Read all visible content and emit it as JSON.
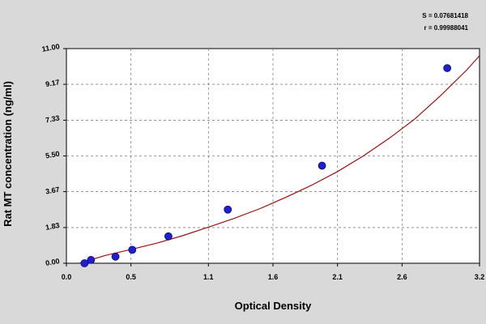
{
  "chart_data": {
    "type": "scatter",
    "title": "",
    "xlabel": "Optical Density",
    "ylabel": "Rat MT concentration (ng/ml)",
    "xlim": [
      0,
      3.2
    ],
    "ylim": [
      0,
      11
    ],
    "x_ticks": [
      0.0,
      0.5,
      1.1,
      1.6,
      2.1,
      2.6,
      3.2
    ],
    "x_tick_labels": [
      "0.0",
      "0.5",
      "1.1",
      "1.6",
      "2.1",
      "2.6",
      "3.2"
    ],
    "y_ticks": [
      0.0,
      1.83,
      3.67,
      5.5,
      7.33,
      9.17,
      11.0
    ],
    "y_tick_labels": [
      "0.00",
      "1.83",
      "3.67",
      "5.50",
      "7.33",
      "9.17",
      "11.00"
    ],
    "grid": true,
    "series": [
      {
        "x": [
          0.14,
          0.19,
          0.38,
          0.51,
          0.79,
          1.25,
          1.98,
          2.95
        ],
        "y": [
          0.0,
          0.17,
          0.34,
          0.69,
          1.38,
          2.75,
          5.0,
          10.0
        ],
        "point_color": "#1f1fcc"
      }
    ],
    "fit_curve": {
      "x": [
        0.1,
        0.3,
        0.5,
        0.7,
        0.9,
        1.1,
        1.3,
        1.5,
        1.7,
        1.9,
        2.1,
        2.3,
        2.5,
        2.7,
        2.9,
        3.1,
        3.2
      ],
      "y": [
        0.0,
        0.4,
        0.71,
        1.03,
        1.41,
        1.85,
        2.3,
        2.8,
        3.38,
        4.0,
        4.7,
        5.5,
        6.4,
        7.4,
        8.6,
        9.9,
        10.63
      ],
      "color": "#a01010"
    },
    "stats": {
      "s": "S = 0.07681418",
      "r": "r = 0.99988041"
    }
  },
  "colors": {
    "background": "#d9d9d9",
    "plot_bg": "#ffffff",
    "grid": "#808080",
    "points": "#1f1fcc",
    "curve": "#a01010"
  }
}
